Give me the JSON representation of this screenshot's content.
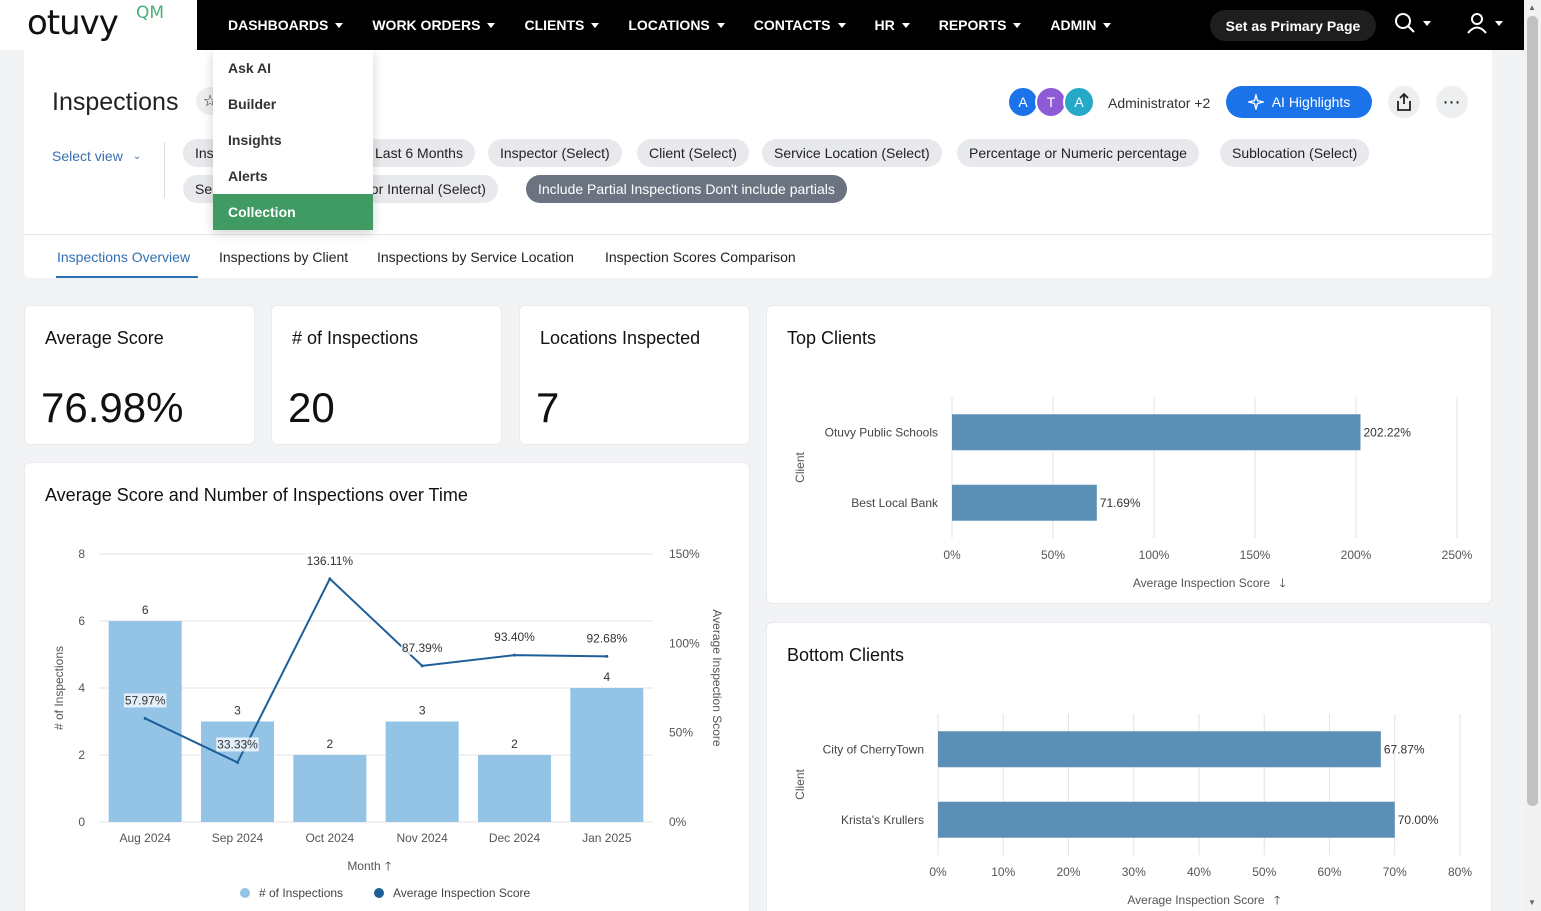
{
  "app": {
    "logo_text": "otuvy",
    "logo_suffix": "QM",
    "nav": [
      {
        "label": "DASHBOARDS"
      },
      {
        "label": "WORK ORDERS"
      },
      {
        "label": "CLIENTS"
      },
      {
        "label": "LOCATIONS"
      },
      {
        "label": "CONTACTS"
      },
      {
        "label": "HR"
      },
      {
        "label": "REPORTS"
      },
      {
        "label": "ADMIN"
      }
    ],
    "set_primary_label": "Set as Primary Page"
  },
  "dropdown": {
    "items": [
      {
        "label": "Ask AI"
      },
      {
        "label": "Builder"
      },
      {
        "label": "Insights"
      },
      {
        "label": "Alerts"
      },
      {
        "label": "Collection",
        "active": true
      }
    ]
  },
  "header": {
    "title": "Inspections",
    "avatars": [
      {
        "letter": "A",
        "color": "#1a73e8"
      },
      {
        "letter": "T",
        "color": "#8e5bd6"
      },
      {
        "letter": "A",
        "color": "#26a9c9"
      }
    ],
    "admin_label": "Administrator +2",
    "ai_button": "AI Highlights",
    "select_view": "Select view",
    "filters_row1": [
      "Ins",
      "Last 6 Months",
      "Inspector (Select)",
      "Client (Select)",
      "Service Location (Select)",
      "Percentage or Numeric percentage",
      "Sublocation (Select)"
    ],
    "filters_row2": [
      "Se",
      "al or Internal (Select)",
      "Include Partial Inspections Don't include partials"
    ]
  },
  "tabs": [
    {
      "label": "Inspections Overview",
      "active": true
    },
    {
      "label": "Inspections by Client"
    },
    {
      "label": "Inspections by Service Location"
    },
    {
      "label": "Inspection Scores Comparison"
    }
  ],
  "kpis": [
    {
      "title": "Average Score",
      "value": "76.98%"
    },
    {
      "title": "# of Inspections",
      "value": "20"
    },
    {
      "title": "Locations Inspected",
      "value": "7"
    }
  ],
  "charts": {
    "combo_title": "Average Score and Number of Inspections over Time",
    "top_title": "Top Clients",
    "bottom_title": "Bottom Clients"
  },
  "chart_data": [
    {
      "type": "bar",
      "title": "Average Score and Number of Inspections over Time",
      "categories": [
        "Aug 2024",
        "Sep 2024",
        "Oct 2024",
        "Nov 2024",
        "Dec 2024",
        "Jan 2025"
      ],
      "xlabel": "Month",
      "ylabel": "# of Inspections",
      "y2label": "Average Inspection Score",
      "ylim": [
        0,
        8
      ],
      "y2lim": [
        0,
        150
      ],
      "yticks": [
        "0",
        "2",
        "4",
        "6",
        "8"
      ],
      "y2ticks": [
        "0%",
        "50%",
        "100%",
        "150%"
      ],
      "series": [
        {
          "name": "# of Inspections",
          "type": "bar",
          "color": "#93c4e6",
          "values": [
            6,
            3,
            2,
            3,
            2,
            4
          ],
          "labels": [
            "6",
            "3",
            "2",
            "3",
            "2",
            "4"
          ]
        },
        {
          "name": "Average Inspection Score",
          "type": "line",
          "color": "#1f5f99",
          "values": [
            57.97,
            33.33,
            136.11,
            87.39,
            93.4,
            92.68
          ],
          "labels": [
            "57.97%",
            "33.33%",
            "136.11%",
            "87.39%",
            "93.40%",
            "92.68%"
          ]
        }
      ],
      "legend": "bottom"
    },
    {
      "type": "bar",
      "orientation": "horizontal",
      "title": "Top Clients",
      "categories": [
        "Otuvy Public Schools",
        "Best Local Bank"
      ],
      "values": [
        202.22,
        71.69
      ],
      "labels": [
        "202.22%",
        "71.69%"
      ],
      "xlabel": "Average Inspection Score",
      "ylabel": "Client",
      "xlim": [
        0,
        250
      ],
      "xticks": [
        "0%",
        "50%",
        "100%",
        "150%",
        "200%",
        "250%"
      ],
      "color": "#5b8fb5"
    },
    {
      "type": "bar",
      "orientation": "horizontal",
      "title": "Bottom Clients",
      "categories": [
        "City of CherryTown",
        "Krista's Krullers"
      ],
      "values": [
        67.87,
        70.0
      ],
      "labels": [
        "67.87%",
        "70.00%"
      ],
      "xlabel": "Average Inspection Score",
      "ylabel": "Client",
      "xlim": [
        0,
        80
      ],
      "xticks": [
        "0%",
        "10%",
        "20%",
        "30%",
        "40%",
        "50%",
        "60%",
        "70%",
        "80%"
      ],
      "color": "#5b8fb5"
    }
  ]
}
